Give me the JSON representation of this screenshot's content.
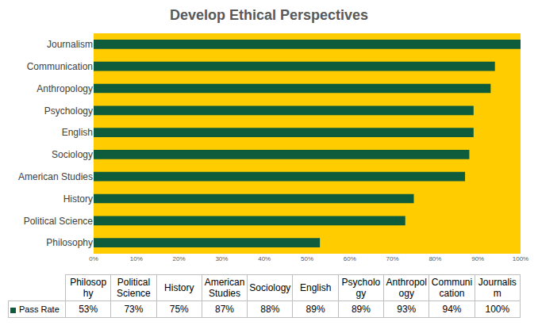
{
  "chart_data": {
    "type": "bar",
    "title": "Develop Ethical Perspectives",
    "orientation": "horizontal",
    "categories": [
      "Philosophy",
      "Political Science",
      "History",
      "American Studies",
      "Sociology",
      "English",
      "Psychology",
      "Anthropology",
      "Communication",
      "Journalism"
    ],
    "series": [
      {
        "name": "Pass Rate",
        "color": "#0f5c3c",
        "values": [
          53,
          73,
          75,
          87,
          88,
          89,
          89,
          93,
          94,
          100
        ],
        "value_labels": [
          "53%",
          "73%",
          "75%",
          "87%",
          "88%",
          "89%",
          "89%",
          "93%",
          "94%",
          "100%"
        ]
      }
    ],
    "xlim": [
      0,
      100
    ],
    "xticks": [
      {
        "value": 0,
        "label": "0%"
      },
      {
        "value": 10,
        "label": "10%"
      },
      {
        "value": 20,
        "label": "20%"
      },
      {
        "value": 30,
        "label": "30%"
      },
      {
        "value": 40,
        "label": "40%"
      },
      {
        "value": 50,
        "label": "50%"
      },
      {
        "value": 60,
        "label": "60%"
      },
      {
        "value": 70,
        "label": "70%"
      },
      {
        "value": 80,
        "label": "80%"
      },
      {
        "value": 90,
        "label": "90%"
      },
      {
        "value": 100,
        "label": "100%"
      }
    ],
    "grid": false
  }
}
